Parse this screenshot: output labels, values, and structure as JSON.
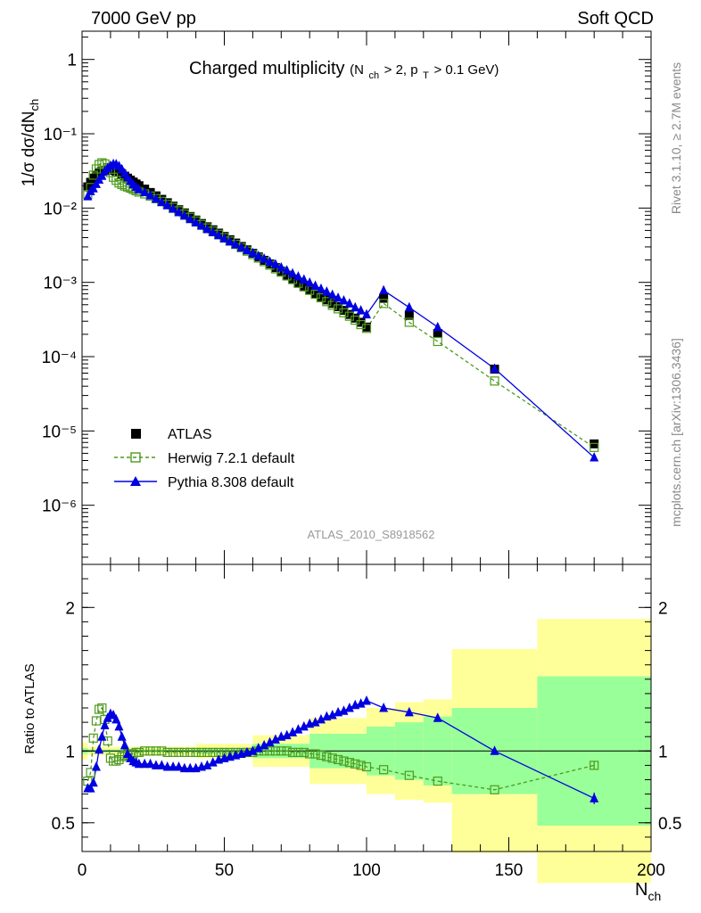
{
  "header": {
    "left": "7000 GeV pp",
    "right": "Soft QCD"
  },
  "side_text": {
    "rivet": "Rivet 3.1.10, ≥ 2.7M events",
    "mcplots": "mcplots.cern.ch [arXiv:1306.3436]"
  },
  "main_title": {
    "text": "Charged multiplicity",
    "cond_open": "(N",
    "cond_ch": "ch",
    "cond_mid": " > 2, p",
    "cond_T": "T",
    "cond_close": " > 0.1 GeV)"
  },
  "y_title_top": {
    "a": "1/σ dσ/dN",
    "sub": "ch"
  },
  "y_title_bottom": "Ratio to ATLAS",
  "x_title": {
    "main": "N",
    "sub": "ch"
  },
  "analysis_label": "ATLAS_2010_S8918562",
  "legend": {
    "atlas": "ATLAS",
    "herwig": "Herwig 7.2.1 default",
    "pythia": "Pythia 8.308 default"
  },
  "colors": {
    "atlas": "#000000",
    "herwig": "#4f9a1e",
    "pythia": "#0000e0",
    "band_inner": "#99ff99",
    "band_outer": "#ffff99"
  },
  "chart_data": {
    "type": "scatter",
    "x_label": "N_ch",
    "x_range": [
      0,
      200
    ],
    "x_ticks": [
      "0",
      "50",
      "100",
      "150",
      "200"
    ],
    "top_panel": {
      "y_label": "1/σ dσ/dN_ch",
      "y_scale": "log",
      "y_range": [
        1.6e-07,
        2.4
      ],
      "y_ticks": [
        "10⁻⁶",
        "10⁻⁵",
        "10⁻⁴",
        "10⁻³",
        "10⁻²",
        "10⁻¹",
        "1"
      ]
    },
    "bottom_panel": {
      "y_label": "Ratio to ATLAS",
      "y_scale": "linear",
      "y_range": [
        0.3,
        2.3
      ],
      "y_ticks": [
        "0.5",
        "1",
        "2"
      ]
    },
    "atlas": {
      "x": [
        2,
        3,
        4,
        5,
        6,
        7,
        8,
        9,
        10,
        11,
        12,
        13,
        14,
        15,
        16,
        17,
        18,
        19,
        20,
        22,
        24,
        26,
        28,
        30,
        32,
        34,
        36,
        38,
        40,
        42,
        44,
        46,
        48,
        50,
        52,
        54,
        56,
        58,
        60,
        62,
        64,
        66,
        68,
        70,
        72,
        74,
        76,
        78,
        80,
        82,
        84,
        86,
        88,
        90,
        92,
        94,
        96,
        98,
        100,
        106,
        115,
        125,
        145,
        180
      ],
      "y": [
        0.0193,
        0.0222,
        0.0253,
        0.0278,
        0.0298,
        0.0312,
        0.0322,
        0.0326,
        0.0327,
        0.0324,
        0.0315,
        0.0302,
        0.0286,
        0.0269,
        0.0253,
        0.0238,
        0.0224,
        0.0211,
        0.02,
        0.018,
        0.0162,
        0.0146,
        0.0131,
        0.0118,
        0.0106,
        0.0095,
        0.0086,
        0.0077,
        0.0069,
        0.0062,
        0.0056,
        0.0051,
        0.0046,
        0.00415,
        0.00375,
        0.00338,
        0.00304,
        0.00274,
        0.00246,
        0.0022,
        0.00198,
        0.00177,
        0.00158,
        0.00141,
        0.00125,
        0.00111,
        0.00099,
        0.00088,
        0.00079,
        0.00071,
        0.00064,
        0.00058,
        0.00052,
        0.00047,
        0.00042,
        0.00037,
        0.00033,
        0.00029,
        0.00025,
        0.00061,
        0.00036,
        0.000205,
        6.8e-05,
        6.7e-06
      ]
    },
    "herwig": {
      "x": [
        2,
        3,
        4,
        5,
        6,
        7,
        8,
        9,
        10,
        11,
        12,
        13,
        14,
        15,
        16,
        17,
        18,
        19,
        20,
        22,
        24,
        26,
        28,
        30,
        32,
        34,
        36,
        38,
        40,
        42,
        44,
        46,
        48,
        50,
        52,
        54,
        56,
        58,
        60,
        62,
        64,
        66,
        68,
        70,
        72,
        74,
        76,
        78,
        80,
        82,
        84,
        86,
        88,
        90,
        92,
        94,
        96,
        98,
        100,
        106,
        115,
        125,
        145,
        180
      ],
      "y": [
        0.0152,
        0.0189,
        0.0277,
        0.0336,
        0.0385,
        0.0407,
        0.0393,
        0.035,
        0.03,
        0.026,
        0.0236,
        0.0218,
        0.0207,
        0.0198,
        0.0192,
        0.0185,
        0.0178,
        0.0171,
        0.0164,
        0.0155,
        0.0145,
        0.0134,
        0.0123,
        0.0112,
        0.0102,
        0.0092,
        0.0083,
        0.0075,
        0.0067,
        0.006,
        0.0054,
        0.0049,
        0.00443,
        0.004,
        0.0036,
        0.00324,
        0.00292,
        0.00263,
        0.00236,
        0.00212,
        0.0019,
        0.0017,
        0.00152,
        0.00137,
        0.00122,
        0.00109,
        0.00097,
        0.00087,
        0.00078,
        0.00069,
        0.00062,
        0.00055,
        0.00049,
        0.00044,
        0.00039,
        0.00035,
        0.00031,
        0.00027,
        0.00024,
        0.00052,
        0.00029,
        0.00016,
        4.7e-05,
        6e-06
      ]
    },
    "pythia": {
      "x": [
        2,
        3,
        4,
        5,
        6,
        7,
        8,
        9,
        10,
        11,
        12,
        13,
        14,
        15,
        16,
        17,
        18,
        19,
        20,
        22,
        24,
        26,
        28,
        30,
        32,
        34,
        36,
        38,
        40,
        42,
        44,
        46,
        48,
        50,
        52,
        54,
        56,
        58,
        60,
        62,
        64,
        66,
        68,
        70,
        72,
        74,
        76,
        78,
        80,
        82,
        84,
        86,
        88,
        90,
        92,
        94,
        96,
        98,
        100,
        106,
        115,
        125,
        145,
        180
      ],
      "y": [
        0.0144,
        0.0169,
        0.0184,
        0.0211,
        0.0241,
        0.0271,
        0.0313,
        0.0347,
        0.0373,
        0.0392,
        0.0389,
        0.0368,
        0.0333,
        0.0294,
        0.0259,
        0.0231,
        0.0209,
        0.0192,
        0.0179,
        0.0164,
        0.0148,
        0.0133,
        0.012,
        0.0109,
        0.0098,
        0.0088,
        0.0079,
        0.0071,
        0.0064,
        0.0058,
        0.0052,
        0.00472,
        0.0043,
        0.00389,
        0.00355,
        0.00324,
        0.00296,
        0.00271,
        0.00248,
        0.00227,
        0.00208,
        0.0019,
        0.00175,
        0.00159,
        0.00145,
        0.00132,
        0.0012,
        0.00109,
        0.00099,
        0.0009,
        0.00082,
        0.00075,
        0.00068,
        0.00062,
        0.00057,
        0.00052,
        0.00046,
        0.00042,
        0.00037,
        0.00078,
        0.00046,
        0.00025,
        6.9e-05,
        4.4e-06
      ]
    },
    "ratio_herwig": {
      "x": [
        2,
        3,
        4,
        5,
        6,
        7,
        8,
        9,
        10,
        11,
        12,
        13,
        14,
        15,
        16,
        17,
        18,
        19,
        20,
        22,
        24,
        26,
        28,
        30,
        32,
        34,
        36,
        38,
        40,
        42,
        44,
        46,
        48,
        50,
        52,
        54,
        56,
        58,
        60,
        62,
        64,
        66,
        68,
        70,
        72,
        74,
        76,
        78,
        80,
        82,
        84,
        86,
        88,
        90,
        92,
        94,
        96,
        98,
        100,
        106,
        115,
        125,
        145,
        180
      ],
      "y": [
        0.79,
        0.85,
        1.09,
        1.21,
        1.29,
        1.3,
        1.22,
        1.07,
        0.95,
        0.93,
        0.93,
        0.94,
        0.96,
        0.97,
        0.98,
        0.98,
        0.98,
        0.99,
        0.99,
        1.0,
        1.0,
        1.0,
        1.0,
        0.99,
        0.99,
        0.99,
        0.99,
        0.99,
        0.99,
        0.99,
        0.99,
        0.99,
        0.99,
        0.99,
        0.99,
        0.99,
        0.99,
        0.99,
        0.99,
        1.0,
        1.0,
        1.0,
        1.0,
        1.0,
        1.0,
        0.99,
        0.99,
        0.99,
        0.98,
        0.98,
        0.97,
        0.96,
        0.95,
        0.94,
        0.93,
        0.92,
        0.91,
        0.9,
        0.89,
        0.87,
        0.83,
        0.79,
        0.73,
        0.9
      ],
      "err_last": 0.03
    },
    "ratio_pythia": {
      "x": [
        2,
        3,
        4,
        5,
        6,
        7,
        8,
        9,
        10,
        11,
        12,
        13,
        14,
        15,
        16,
        17,
        18,
        19,
        20,
        22,
        24,
        26,
        28,
        30,
        32,
        34,
        36,
        38,
        40,
        42,
        44,
        46,
        48,
        50,
        52,
        54,
        56,
        58,
        60,
        62,
        64,
        66,
        68,
        70,
        72,
        74,
        76,
        78,
        80,
        82,
        84,
        86,
        88,
        90,
        92,
        94,
        96,
        98,
        100,
        106,
        115,
        125,
        145,
        180
      ],
      "y": [
        0.74,
        0.74,
        0.78,
        0.89,
        1.01,
        1.1,
        1.18,
        1.23,
        1.26,
        1.25,
        1.22,
        1.17,
        1.1,
        1.04,
        0.98,
        0.95,
        0.93,
        0.92,
        0.91,
        0.91,
        0.91,
        0.9,
        0.9,
        0.89,
        0.89,
        0.89,
        0.88,
        0.88,
        0.88,
        0.89,
        0.9,
        0.92,
        0.94,
        0.95,
        0.96,
        0.97,
        0.98,
        0.99,
        1.0,
        1.02,
        1.04,
        1.06,
        1.08,
        1.1,
        1.11,
        1.13,
        1.15,
        1.17,
        1.19,
        1.2,
        1.22,
        1.24,
        1.25,
        1.27,
        1.28,
        1.3,
        1.32,
        1.33,
        1.35,
        1.3,
        1.27,
        1.23,
        1.0,
        0.67
      ],
      "err_last": 0.04
    },
    "band_bins": [
      {
        "x0": 0,
        "x1": 2,
        "inner": 0.02,
        "outer": 0.06
      },
      {
        "x0": 2,
        "x1": 20,
        "inner": 0.01,
        "outer": 0.03
      },
      {
        "x0": 20,
        "x1": 40,
        "inner": 0.01,
        "outer": 0.03
      },
      {
        "x0": 40,
        "x1": 60,
        "inner": 0.02,
        "outer": 0.05
      },
      {
        "x0": 60,
        "x1": 80,
        "inner": 0.05,
        "outer": 0.11
      },
      {
        "x0": 80,
        "x1": 100,
        "inner": 0.12,
        "outer": 0.23
      },
      {
        "x0": 100,
        "x1": 110,
        "inner": 0.17,
        "outer": 0.3
      },
      {
        "x0": 110,
        "x1": 120,
        "inner": 0.2,
        "outer": 0.34
      },
      {
        "x0": 120,
        "x1": 130,
        "inner": 0.24,
        "outer": 0.36
      },
      {
        "x0": 130,
        "x1": 160,
        "inner": 0.3,
        "outer": 0.71
      },
      {
        "x0": 160,
        "x1": 200,
        "inner": 0.52,
        "outer": 0.92
      }
    ]
  }
}
